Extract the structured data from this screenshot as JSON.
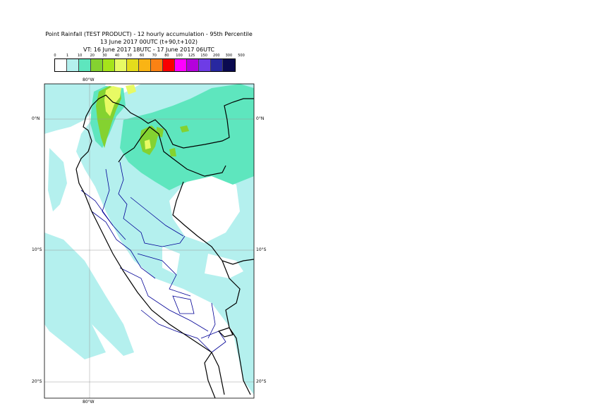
{
  "title": {
    "line1": "Point Rainfall (TEST PRODUCT) - 12 hourly accumulation - 95th Percentile",
    "line2": "13 June 2017 00UTC (t+90,t+102)",
    "line3": "VT: 16 June 2017 18UTC - 17 June 2017 06UTC"
  },
  "legend": {
    "thresholds": [
      "0",
      "1",
      "10",
      "20",
      "30",
      "40",
      "50",
      "60",
      "70",
      "80",
      "100",
      "125",
      "150",
      "200",
      "300",
      "500"
    ],
    "colors": [
      "#ffffff",
      "#b4f0ee",
      "#5ee6be",
      "#84d230",
      "#a6e41a",
      "#e8fa64",
      "#e4dc1c",
      "#fab414",
      "#fa8214",
      "#fa0000",
      "#ff00ff",
      "#b400dc",
      "#6e3ce6",
      "#2828a0",
      "#0a0a50"
    ]
  },
  "axes": {
    "lon_top": "80°W",
    "lon_bottom": "80°W",
    "lat_left": [
      "0°N",
      "10°S",
      "20°S"
    ],
    "lat_right": [
      "0°N",
      "10°S",
      "20°S"
    ]
  },
  "map": {
    "ocean_color": "#ffffff",
    "light_rain_color": "#b4f0ee",
    "medium_rain_color": "#5ee6be",
    "heavy_rain_color": "#84d230",
    "peak_rain_color": "#e8fa64",
    "border_color": "#000000",
    "admin_color": "#000096"
  }
}
